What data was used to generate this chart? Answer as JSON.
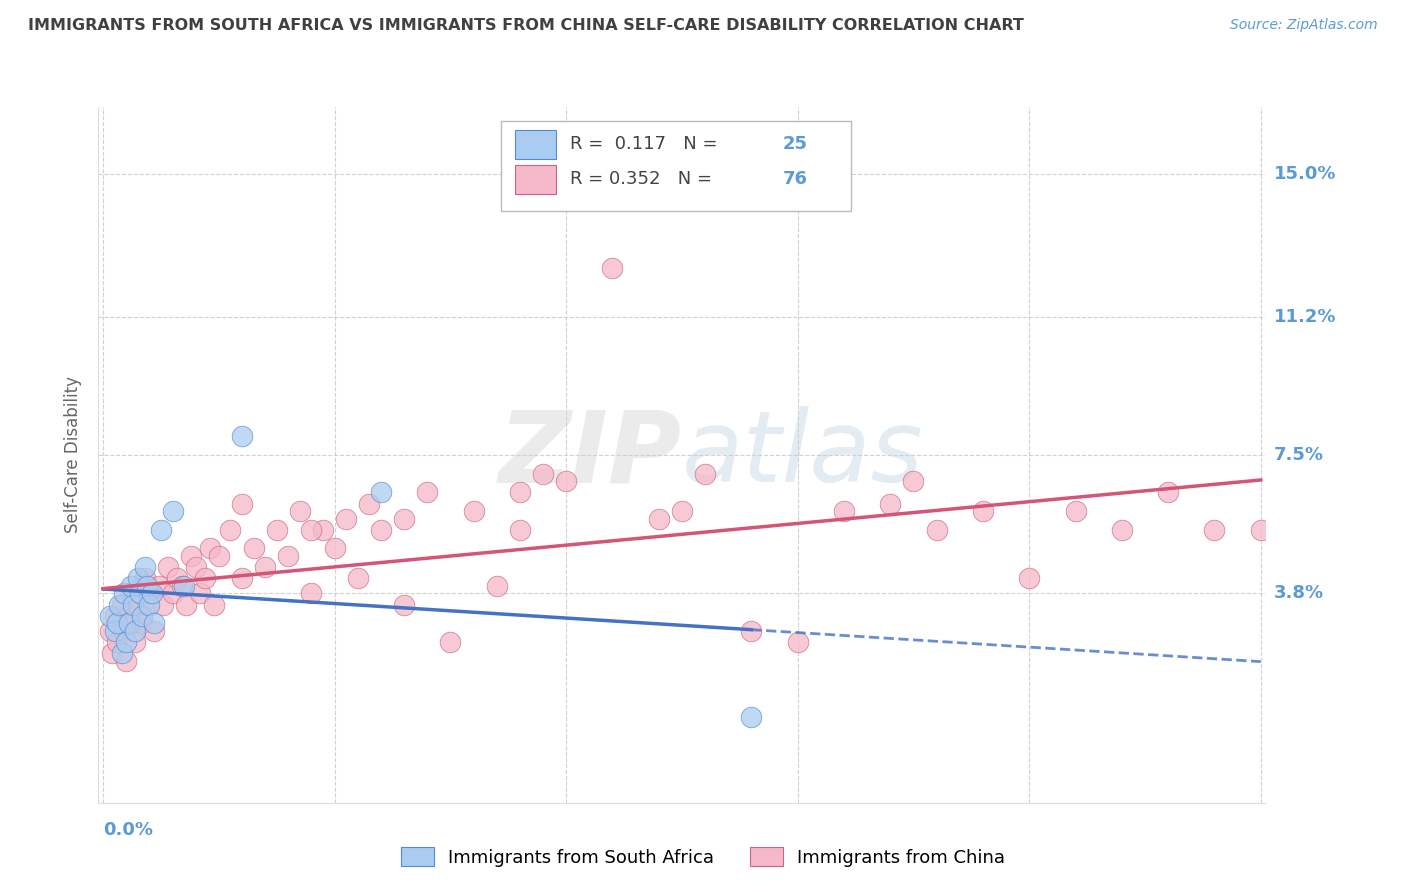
{
  "title": "IMMIGRANTS FROM SOUTH AFRICA VS IMMIGRANTS FROM CHINA SELF-CARE DISABILITY CORRELATION CHART",
  "source": "Source: ZipAtlas.com",
  "ylabel": "Self-Care Disability",
  "ytick_labels": [
    "3.8%",
    "7.5%",
    "11.2%",
    "15.0%"
  ],
  "ytick_values": [
    0.038,
    0.075,
    0.112,
    0.15
  ],
  "xlim": [
    -0.002,
    0.502
  ],
  "ylim": [
    -0.018,
    0.168
  ],
  "legend_label1": "Immigrants from South Africa",
  "legend_label2": "Immigrants from China",
  "color_blue_fill": "#aaccf0",
  "color_blue_edge": "#5588cc",
  "color_blue_line": "#4472c4",
  "color_pink_fill": "#f5b8c8",
  "color_pink_edge": "#cc6680",
  "color_pink_line": "#d45575",
  "color_axis_label": "#5b9bd5",
  "color_title": "#404040",
  "watermark": "ZIPatlas",
  "sa_x": [
    0.003,
    0.005,
    0.006,
    0.007,
    0.008,
    0.009,
    0.01,
    0.011,
    0.012,
    0.013,
    0.014,
    0.015,
    0.016,
    0.017,
    0.018,
    0.019,
    0.02,
    0.021,
    0.022,
    0.025,
    0.03,
    0.035,
    0.06,
    0.12,
    0.28
  ],
  "sa_y": [
    0.032,
    0.028,
    0.03,
    0.035,
    0.022,
    0.038,
    0.025,
    0.03,
    0.04,
    0.035,
    0.028,
    0.042,
    0.038,
    0.032,
    0.045,
    0.04,
    0.035,
    0.038,
    0.03,
    0.055,
    0.06,
    0.04,
    0.08,
    0.065,
    0.005
  ],
  "ch_x": [
    0.003,
    0.004,
    0.005,
    0.006,
    0.007,
    0.008,
    0.009,
    0.01,
    0.011,
    0.012,
    0.013,
    0.014,
    0.015,
    0.016,
    0.017,
    0.018,
    0.019,
    0.02,
    0.022,
    0.024,
    0.026,
    0.028,
    0.03,
    0.032,
    0.034,
    0.036,
    0.038,
    0.04,
    0.042,
    0.044,
    0.046,
    0.048,
    0.05,
    0.055,
    0.06,
    0.065,
    0.07,
    0.075,
    0.08,
    0.085,
    0.09,
    0.095,
    0.1,
    0.105,
    0.11,
    0.115,
    0.12,
    0.13,
    0.14,
    0.15,
    0.16,
    0.17,
    0.18,
    0.19,
    0.2,
    0.22,
    0.24,
    0.26,
    0.28,
    0.3,
    0.32,
    0.34,
    0.36,
    0.38,
    0.4,
    0.42,
    0.44,
    0.46,
    0.48,
    0.5,
    0.35,
    0.25,
    0.18,
    0.13,
    0.09,
    0.06
  ],
  "ch_y": [
    0.028,
    0.022,
    0.032,
    0.025,
    0.03,
    0.035,
    0.028,
    0.02,
    0.032,
    0.038,
    0.03,
    0.025,
    0.035,
    0.04,
    0.03,
    0.042,
    0.035,
    0.038,
    0.028,
    0.04,
    0.035,
    0.045,
    0.038,
    0.042,
    0.04,
    0.035,
    0.048,
    0.045,
    0.038,
    0.042,
    0.05,
    0.035,
    0.048,
    0.055,
    0.042,
    0.05,
    0.045,
    0.055,
    0.048,
    0.06,
    0.038,
    0.055,
    0.05,
    0.058,
    0.042,
    0.062,
    0.055,
    0.058,
    0.065,
    0.025,
    0.06,
    0.04,
    0.065,
    0.07,
    0.068,
    0.125,
    0.058,
    0.07,
    0.028,
    0.025,
    0.06,
    0.062,
    0.055,
    0.06,
    0.042,
    0.06,
    0.055,
    0.065,
    0.055,
    0.055,
    0.068,
    0.06,
    0.055,
    0.035,
    0.055,
    0.062
  ]
}
